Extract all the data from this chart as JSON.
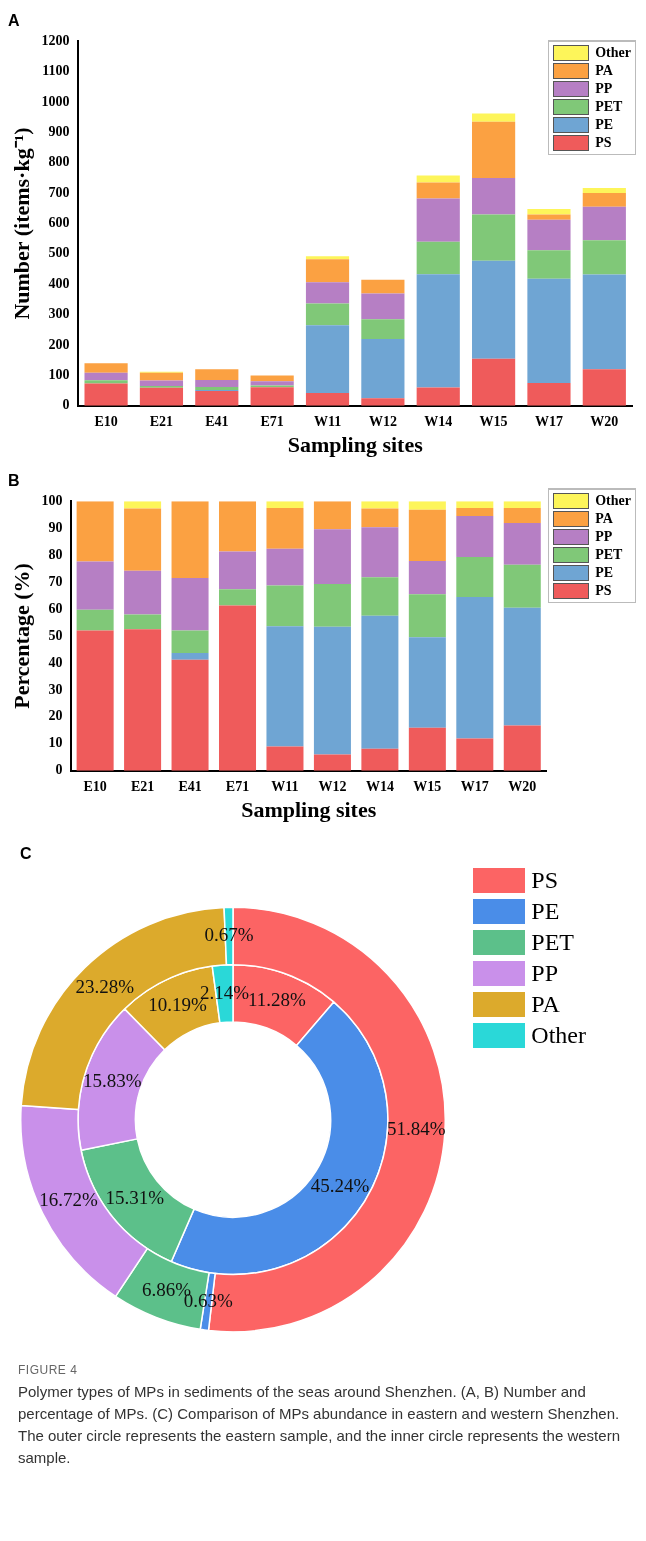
{
  "chart_data": [
    {
      "type": "bar",
      "title": "A",
      "xlabel": "Sampling sites",
      "ylabel": "Number (items·kg⁻¹)",
      "stacked": true,
      "legend": "top right",
      "grid": false,
      "categories": [
        "E10",
        "E21",
        "E41",
        "E71",
        "W11",
        "W12",
        "W14",
        "W15",
        "W17",
        "W20"
      ],
      "ylim": [
        0,
        1200
      ],
      "yticks": [
        0,
        100,
        200,
        300,
        400,
        500,
        600,
        700,
        800,
        900,
        1000,
        1100,
        1200
      ],
      "series": [
        {
          "name": "PS",
          "color": "#ef5b5b",
          "values": [
            73,
            59,
            49,
            61,
            42,
            25,
            60,
            155,
            75,
            120
          ]
        },
        {
          "name": "PE",
          "color": "#6fa5d3",
          "values": [
            0,
            0,
            3,
            0,
            223,
            195,
            373,
            322,
            343,
            312
          ]
        },
        {
          "name": "PET",
          "color": "#80c878",
          "values": [
            11,
            6,
            10,
            6,
            72,
            65,
            107,
            153,
            94,
            113
          ]
        },
        {
          "name": "PP",
          "color": "#b67fc4",
          "values": [
            25,
            18,
            23,
            14,
            70,
            85,
            142,
            120,
            100,
            110
          ]
        },
        {
          "name": "PA",
          "color": "#fba142",
          "values": [
            31,
            26,
            35,
            19,
            75,
            45,
            53,
            185,
            18,
            45
          ]
        },
        {
          "name": "Other",
          "color": "#fdf55a",
          "values": [
            0,
            3,
            0,
            0,
            10,
            0,
            23,
            27,
            18,
            17
          ]
        }
      ]
    },
    {
      "type": "bar",
      "title": "B",
      "xlabel": "Sampling sites",
      "ylabel": "Percentage (%)",
      "stacked": true,
      "legend": "top right",
      "grid": false,
      "categories": [
        "E10",
        "E21",
        "E41",
        "E71",
        "W11",
        "W12",
        "W14",
        "W15",
        "W17",
        "W20"
      ],
      "ylim": [
        0,
        100
      ],
      "yticks": [
        0,
        10,
        20,
        30,
        40,
        50,
        60,
        70,
        80,
        90,
        100
      ],
      "series": [
        {
          "name": "PS",
          "color": "#ef5b5b",
          "values": [
            52,
            52.5,
            41.2,
            61.3,
            9,
            6,
            8.2,
            16,
            12,
            16.8
          ]
        },
        {
          "name": "PE",
          "color": "#6fa5d3",
          "values": [
            0,
            0,
            2.5,
            0,
            44.6,
            47.4,
            49.3,
            33.5,
            52.5,
            43.7
          ]
        },
        {
          "name": "PET",
          "color": "#80c878",
          "values": [
            7.7,
            5.5,
            8.3,
            6,
            15.1,
            15.9,
            14.3,
            16,
            14.8,
            15.9
          ]
        },
        {
          "name": "PP",
          "color": "#b67fc4",
          "values": [
            17.9,
            16.2,
            19.5,
            14,
            13.7,
            20.3,
            18.5,
            12.3,
            15.2,
            15.5
          ]
        },
        {
          "name": "PA",
          "color": "#fba142",
          "values": [
            22.4,
            23.1,
            28.5,
            18.7,
            15.1,
            10.4,
            7,
            19,
            3,
            5.6
          ]
        },
        {
          "name": "Other",
          "color": "#fdf55a",
          "values": [
            0,
            2.7,
            0,
            0,
            2.5,
            0,
            2.7,
            3.2,
            2.5,
            2.5
          ]
        }
      ]
    },
    {
      "type": "donut",
      "title": "C",
      "legend": "top right",
      "categories": [
        "PS",
        "PE",
        "PET",
        "PP",
        "PA",
        "Other"
      ],
      "colors": [
        "#fc6464",
        "#4a8de8",
        "#5cc08a",
        "#c990ea",
        "#dcaa2c",
        "#2ad8d8"
      ],
      "series": [
        {
          "values": [
            51.84,
            0.63,
            6.86,
            16.72,
            23.28,
            0.67
          ],
          "value_labels": [
            "51.84%",
            "0.63%",
            "6.86%",
            "16.72%",
            "23.28%",
            "0.67%"
          ]
        },
        {
          "values": [
            11.28,
            45.24,
            15.31,
            15.83,
            10.19,
            2.14
          ],
          "value_labels": [
            "11.28%",
            "45.24%",
            "15.31%",
            "15.83%",
            "10.19%",
            "2.14%"
          ]
        }
      ],
      "annotations": [
        "FIGURE 4",
        "Polymer types of MPs in sediments of the seas around Shenzhen. (A, B) Number and percentage of MPs. (C) Comparison of MPs abundance in eastern and western Shenzhen. The outer circle represents the eastern sample, and the inner circle represents the western sample."
      ]
    }
  ]
}
